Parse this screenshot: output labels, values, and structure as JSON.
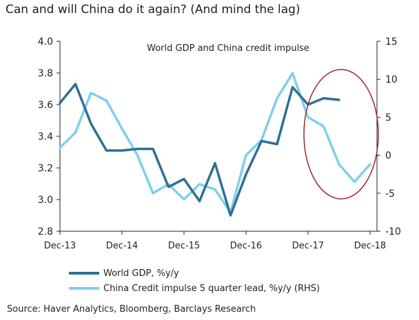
{
  "heading": "Can and will China do it again? (And mind the lag)",
  "source": "Source: Haver Analytics, Bloomberg, Barclays Research",
  "chart_data": {
    "type": "line",
    "title": "World GDP and China credit impulse",
    "x_tick_labels": [
      "Dec-13",
      "Dec-14",
      "Dec-15",
      "Dec-16",
      "Dec-17",
      "Dec-18"
    ],
    "x_range": [
      "2013-12",
      "2018-12"
    ],
    "left_axis": {
      "ylim": [
        2.8,
        4.0
      ],
      "ticks": [
        "4.0",
        "3.8",
        "3.6",
        "3.4",
        "3.2",
        "3.0",
        "2.8"
      ]
    },
    "right_axis": {
      "ylim": [
        -10,
        15
      ],
      "ticks": [
        "15",
        "10",
        "5",
        "0",
        "-5",
        "-10"
      ]
    },
    "series": [
      {
        "name": "World GDP, %y/y",
        "axis": "left",
        "color": "#2e6f96",
        "x": [
          "2013-12",
          "2014-03",
          "2014-06",
          "2014-09",
          "2014-12",
          "2015-03",
          "2015-06",
          "2015-09",
          "2015-12",
          "2016-03",
          "2016-06",
          "2016-09",
          "2016-12",
          "2017-03",
          "2017-06",
          "2017-09",
          "2017-12",
          "2018-03",
          "2018-06",
          "2018-09"
        ],
        "y": [
          3.61,
          3.73,
          3.48,
          3.31,
          3.31,
          3.32,
          3.32,
          3.08,
          3.13,
          2.99,
          3.23,
          2.9,
          3.16,
          3.37,
          3.35,
          3.71,
          3.6,
          3.64,
          3.63,
          null
        ]
      },
      {
        "name": "China Credit impulse 5 quarter lead, %y/y  (RHS)",
        "axis": "right",
        "color": "#7ecfee",
        "x": [
          "2013-12",
          "2014-03",
          "2014-06",
          "2014-09",
          "2014-12",
          "2015-03",
          "2015-06",
          "2015-09",
          "2015-12",
          "2016-03",
          "2016-06",
          "2016-09",
          "2016-12",
          "2017-03",
          "2017-06",
          "2017-09",
          "2017-12",
          "2018-03",
          "2018-06",
          "2018-09",
          "2018-12"
        ],
        "y": [
          1,
          3,
          8.2,
          7.2,
          3.5,
          0,
          -5,
          -3.8,
          -5.8,
          -3.8,
          -4.5,
          -7.5,
          0,
          2,
          7.5,
          10.8,
          5,
          3.8,
          -1.2,
          -3.5,
          -1.2
        ]
      }
    ],
    "annotation": {
      "shape": "ellipse",
      "color": "#a0262a"
    },
    "grid": false,
    "legend_position": "bottom-left"
  }
}
